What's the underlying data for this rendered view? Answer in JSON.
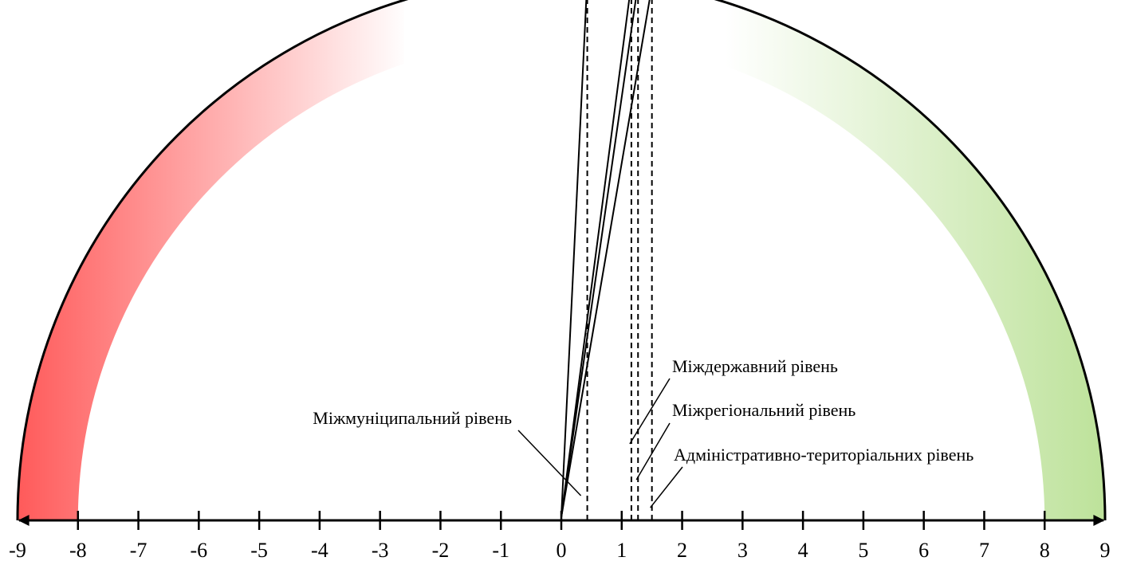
{
  "chart_data": {
    "type": "semicircle-gauge",
    "axis": {
      "min": -9,
      "max": 9,
      "ticks": [
        -9,
        -8,
        -7,
        -6,
        -5,
        -4,
        -3,
        -2,
        -1,
        0,
        1,
        2,
        3,
        4,
        5,
        6,
        7,
        8,
        9
      ],
      "tick_labels": [
        "-9",
        "-8",
        "-7",
        "-6",
        "-5",
        "-4",
        "-3",
        "-2",
        "-1",
        "0",
        "1",
        "2",
        "3",
        "4",
        "5",
        "6",
        "7",
        "8",
        "9"
      ]
    },
    "bands": [
      {
        "side": "negative",
        "inner_radius": 8,
        "color": "#ff5a5a",
        "fade_to": -2.6
      },
      {
        "side": "positive",
        "inner_radius": 8,
        "color": "#bde29a",
        "fade_to": 2.6
      }
    ],
    "vectors": [
      {
        "name": "Міжмуніципальний рівень",
        "value": 0.43
      },
      {
        "name": "Міждержавний рівень",
        "value": 1.16
      },
      {
        "name": "Міжрегіональний рівень",
        "value": 1.27
      },
      {
        "name": "Адміністративно-територіальних рівень",
        "value": 1.5
      }
    ]
  }
}
